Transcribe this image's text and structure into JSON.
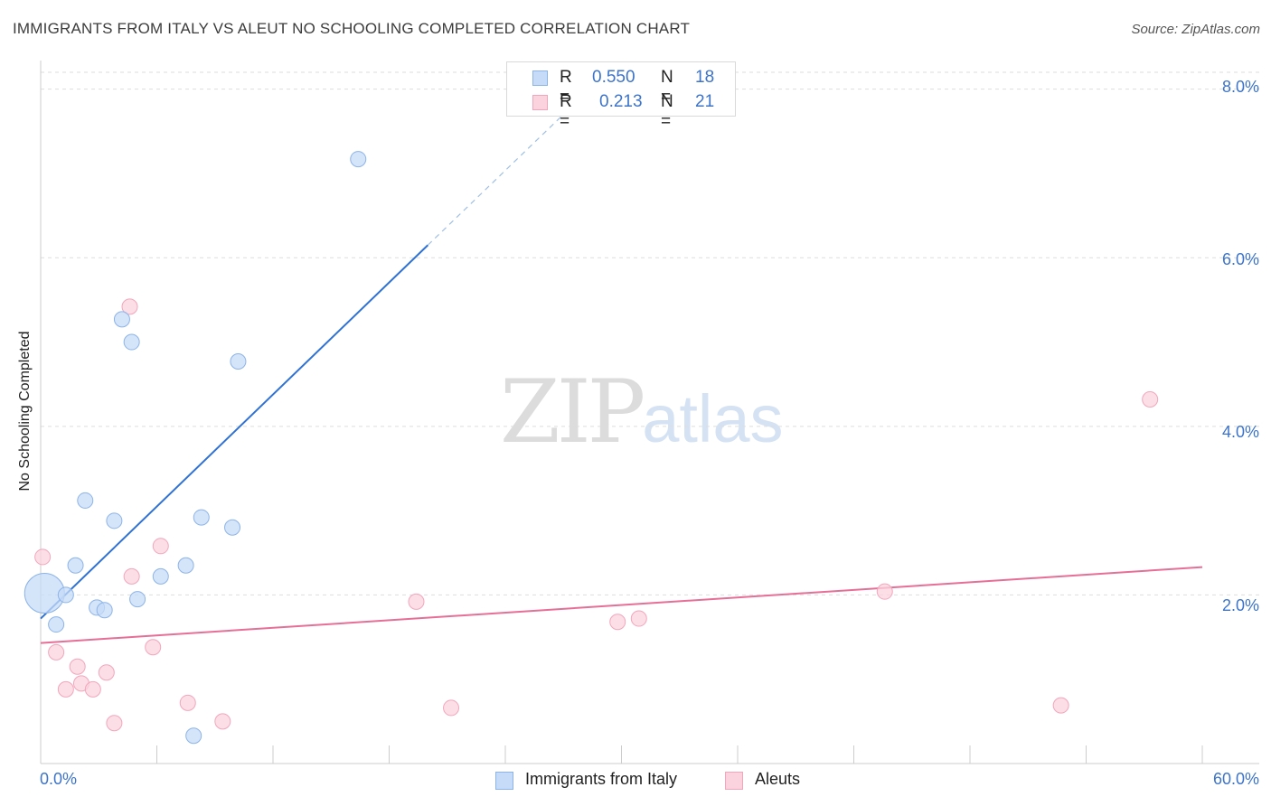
{
  "header": {
    "title": "IMMIGRANTS FROM ITALY VS ALEUT NO SCHOOLING COMPLETED CORRELATION CHART",
    "source": "Source: ZipAtlas.com"
  },
  "watermark": {
    "zip": "ZIP",
    "atlas": "atlas"
  },
  "stats": [
    {
      "r_label": "R =",
      "r_value": "0.550",
      "n_label": "N =",
      "n_value": "18"
    },
    {
      "r_label": "R =",
      "r_value": "0.213",
      "n_label": "N =",
      "n_value": "21"
    }
  ],
  "legend": [
    {
      "label": "Immigrants from Italy"
    },
    {
      "label": "Aleuts"
    }
  ],
  "colors": {
    "italy_fill": "#c5dbf7",
    "italy_stroke": "#8db4e8",
    "italy_line": "#2f72d4",
    "aleut_fill": "#fbd3de",
    "aleut_stroke": "#f2a6bc",
    "aleut_line": "#e56f96",
    "grid": "#dddddd",
    "axis_text": "#3d74c9"
  },
  "chart_data": {
    "type": "scatter",
    "title": "IMMIGRANTS FROM ITALY VS ALEUT NO SCHOOLING COMPLETED CORRELATION CHART",
    "xlabel": "",
    "ylabel": "No Schooling Completed",
    "xlim": [
      0,
      60
    ],
    "ylim": [
      0,
      8.2
    ],
    "x_tick_labels": [
      "0.0%",
      "60.0%"
    ],
    "y_ticks": [
      2,
      4,
      6,
      8
    ],
    "y_tick_labels": [
      "2.0%",
      "4.0%",
      "6.0%",
      "8.0%"
    ],
    "legend_position": "bottom-center",
    "series": [
      {
        "name": "Immigrants from Italy",
        "r": 0.55,
        "n": 18,
        "points": [
          {
            "x": 0.2,
            "y": 2.02,
            "big": true
          },
          {
            "x": 0.8,
            "y": 1.65
          },
          {
            "x": 1.3,
            "y": 2.0
          },
          {
            "x": 1.8,
            "y": 2.35
          },
          {
            "x": 2.3,
            "y": 3.12
          },
          {
            "x": 2.9,
            "y": 1.85
          },
          {
            "x": 3.3,
            "y": 1.82
          },
          {
            "x": 3.8,
            "y": 2.88
          },
          {
            "x": 4.2,
            "y": 5.27
          },
          {
            "x": 4.7,
            "y": 5.0
          },
          {
            "x": 5.0,
            "y": 1.95
          },
          {
            "x": 6.2,
            "y": 2.22
          },
          {
            "x": 7.5,
            "y": 2.35
          },
          {
            "x": 7.9,
            "y": 0.33
          },
          {
            "x": 8.3,
            "y": 2.92
          },
          {
            "x": 9.9,
            "y": 2.8
          },
          {
            "x": 10.2,
            "y": 4.77
          },
          {
            "x": 16.4,
            "y": 7.17
          }
        ],
        "trend": {
          "x0": 0,
          "y0": 1.72,
          "x1": 20,
          "y1": 6.15,
          "dash_to_x": 27,
          "dash_to_y": 7.7
        }
      },
      {
        "name": "Aleuts",
        "r": 0.213,
        "n": 21,
        "points": [
          {
            "x": 0.1,
            "y": 2.45
          },
          {
            "x": 0.8,
            "y": 1.32
          },
          {
            "x": 1.3,
            "y": 0.88
          },
          {
            "x": 1.9,
            "y": 1.15
          },
          {
            "x": 2.1,
            "y": 0.95
          },
          {
            "x": 2.7,
            "y": 0.88
          },
          {
            "x": 3.4,
            "y": 1.08
          },
          {
            "x": 3.8,
            "y": 0.48
          },
          {
            "x": 4.6,
            "y": 5.42
          },
          {
            "x": 4.7,
            "y": 2.22
          },
          {
            "x": 5.8,
            "y": 1.38
          },
          {
            "x": 6.2,
            "y": 2.58
          },
          {
            "x": 7.6,
            "y": 0.72
          },
          {
            "x": 9.4,
            "y": 0.5
          },
          {
            "x": 19.4,
            "y": 1.92
          },
          {
            "x": 21.2,
            "y": 0.66
          },
          {
            "x": 29.8,
            "y": 1.68
          },
          {
            "x": 30.9,
            "y": 1.72
          },
          {
            "x": 43.6,
            "y": 2.04
          },
          {
            "x": 52.7,
            "y": 0.69
          },
          {
            "x": 57.3,
            "y": 4.32
          }
        ],
        "trend": {
          "x0": 0,
          "y0": 1.43,
          "x1": 60,
          "y1": 2.33
        }
      }
    ]
  }
}
